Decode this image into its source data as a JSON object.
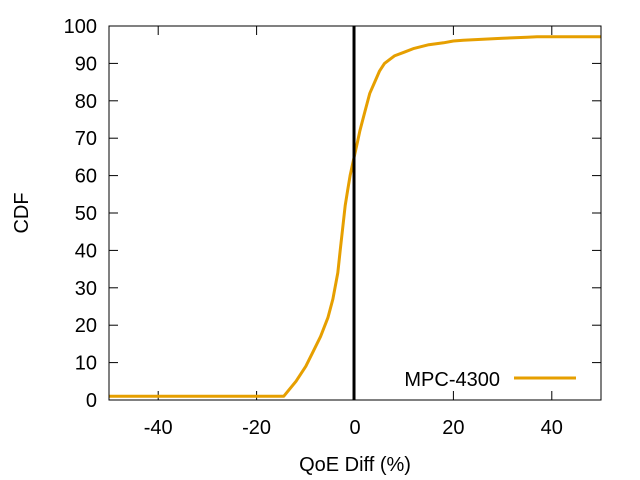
{
  "chart_data": {
    "type": "line",
    "title": "",
    "xlabel": "QoE Diff (%)",
    "ylabel": "CDF",
    "xlim": [
      -50,
      50
    ],
    "ylim": [
      0,
      100
    ],
    "xticks": [
      -40,
      -20,
      0,
      20,
      40
    ],
    "yticks": [
      0,
      10,
      20,
      30,
      40,
      50,
      60,
      70,
      80,
      90,
      100
    ],
    "grid": false,
    "legend": "bottom-right",
    "reference_line": {
      "x": -0.2,
      "color": "#000000"
    },
    "series": [
      {
        "name": "MPC-4300",
        "color": "#e69f00",
        "x": [
          -50,
          -14.5,
          -12,
          -10,
          -8.5,
          -7,
          -5.5,
          -4.5,
          -3.5,
          -3,
          -2.5,
          -2,
          -1.5,
          -1,
          -0.5,
          0,
          0.5,
          1,
          2,
          3,
          4,
          5,
          6,
          7,
          8,
          10,
          12,
          15,
          18,
          20,
          22,
          25,
          30,
          35,
          37,
          50
        ],
        "y": [
          1,
          1,
          5,
          9,
          13,
          17,
          22,
          27,
          34,
          40,
          46,
          52,
          56,
          60,
          63,
          66,
          69,
          72,
          77,
          82,
          85,
          88,
          90,
          91,
          92,
          93,
          94,
          95,
          95.5,
          96,
          96.2,
          96.4,
          96.7,
          97,
          97.1,
          97.1
        ]
      }
    ]
  }
}
